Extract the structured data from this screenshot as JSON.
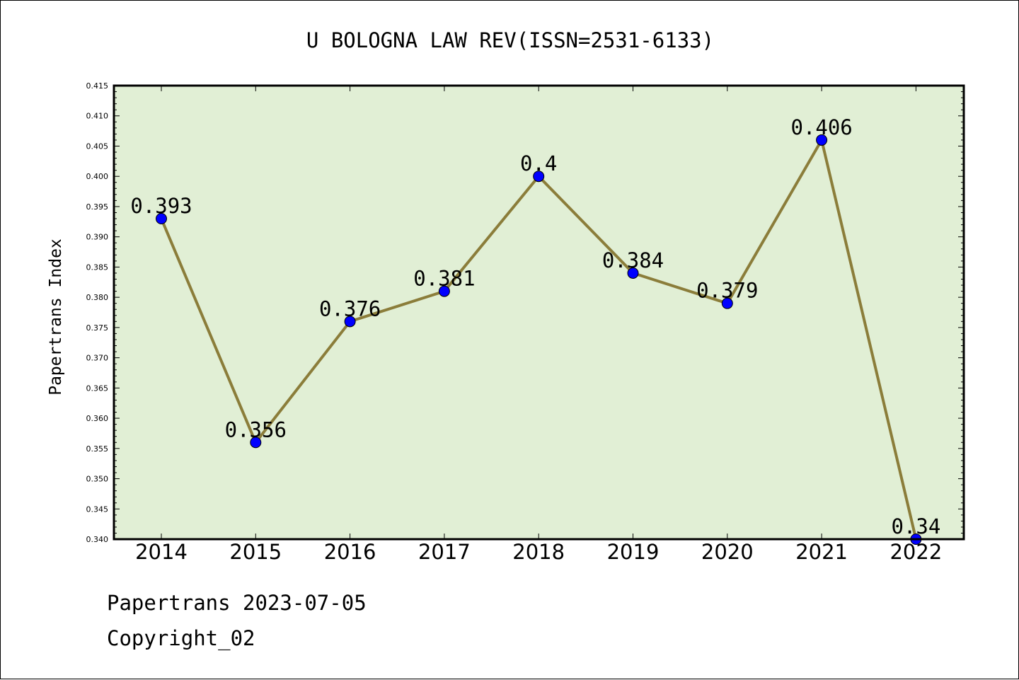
{
  "footer": {
    "date_line": "Papertrans 2023-07-05",
    "copyright_line": "Copyright_02"
  },
  "colors": {
    "plot_background": "#e1efd5",
    "line": "#8b7d3a",
    "marker": "#0000ff",
    "frame": "#000000"
  },
  "chart_data": {
    "type": "line",
    "title": "U BOLOGNA LAW REV(ISSN=2531-6133)",
    "xlabel": "",
    "ylabel": "Papertrans Index",
    "categories": [
      "2014",
      "2015",
      "2016",
      "2017",
      "2018",
      "2019",
      "2020",
      "2021",
      "2022"
    ],
    "series": [
      {
        "values": [
          0.393,
          0.356,
          0.376,
          0.381,
          0.4,
          0.384,
          0.379,
          0.406,
          0.34
        ],
        "labels": [
          "0.393",
          "0.356",
          "0.376",
          "0.381",
          "0.4",
          "0.384",
          "0.379",
          "0.406",
          "0.34"
        ]
      }
    ],
    "ylim": [
      0.34,
      0.415
    ],
    "yticks": [
      "0.340",
      "0.345",
      "0.350",
      "0.355",
      "0.360",
      "0.365",
      "0.370",
      "0.375",
      "0.380",
      "0.385",
      "0.390",
      "0.395",
      "0.400",
      "0.405",
      "0.410",
      "0.415"
    ],
    "grid": false,
    "legend": "none"
  }
}
